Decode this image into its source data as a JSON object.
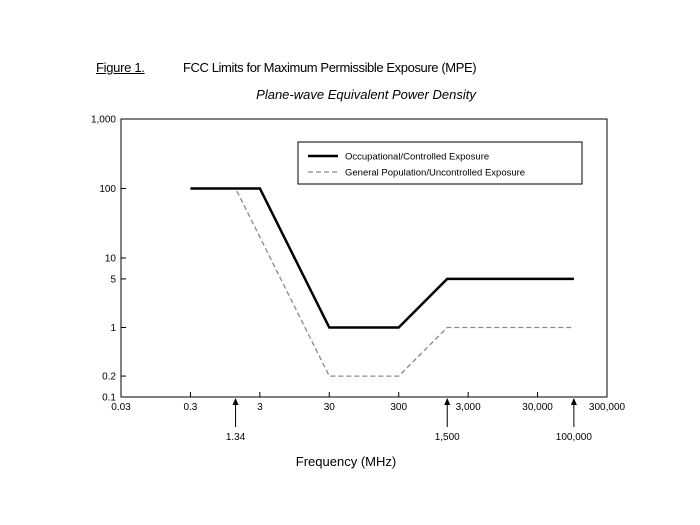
{
  "figure": {
    "label": "Figure 1.",
    "title": "FCC Limits for Maximum Permissible Exposure (MPE)",
    "subtitle": "Plane-wave Equivalent  Power Density"
  },
  "chart_data": {
    "type": "line",
    "title": "FCC Limits for Maximum Permissible Exposure (MPE)",
    "subtitle": "Plane-wave Equivalent  Power Density",
    "xlabel": "Frequency (MHz)",
    "ylabel": "",
    "x_scale": "log",
    "y_scale": "log",
    "xlim": [
      0.03,
      300000
    ],
    "ylim": [
      0.1,
      1000
    ],
    "x_ticks": [
      {
        "value": 0.03,
        "label": "0.03"
      },
      {
        "value": 0.3,
        "label": "0.3"
      },
      {
        "value": 3,
        "label": "3"
      },
      {
        "value": 30,
        "label": "30"
      },
      {
        "value": 300,
        "label": "300"
      },
      {
        "value": 3000,
        "label": "3,000"
      },
      {
        "value": 30000,
        "label": "30,000"
      },
      {
        "value": 300000,
        "label": "300,000"
      }
    ],
    "y_ticks": [
      {
        "value": 1000,
        "label": "1,000"
      },
      {
        "value": 100,
        "label": "100"
      },
      {
        "value": 10,
        "label": "10"
      },
      {
        "value": 5,
        "label": "5"
      },
      {
        "value": 1,
        "label": "1"
      },
      {
        "value": 0.2,
        "label": "0.2"
      },
      {
        "value": 0.1,
        "label": "0.1"
      }
    ],
    "x_annotations": [
      {
        "value": 1.34,
        "label": "1.34"
      },
      {
        "value": 1500,
        "label": "1,500"
      },
      {
        "value": 100000,
        "label": "100,000"
      }
    ],
    "grid": false,
    "legend_position": "top-right",
    "series": [
      {
        "name": "Occupational/Controlled Exposure",
        "style": "solid",
        "color": "#000000",
        "points": [
          [
            0.3,
            100
          ],
          [
            3,
            100
          ],
          [
            30,
            1
          ],
          [
            300,
            1
          ],
          [
            1500,
            5
          ],
          [
            100000,
            5
          ]
        ]
      },
      {
        "name": "General Population/Uncontrolled Exposure",
        "style": "dashed",
        "color": "#888888",
        "points": [
          [
            0.3,
            100
          ],
          [
            1.34,
            100
          ],
          [
            30,
            0.2
          ],
          [
            300,
            0.2
          ],
          [
            1500,
            1
          ],
          [
            100000,
            1
          ]
        ]
      }
    ]
  }
}
